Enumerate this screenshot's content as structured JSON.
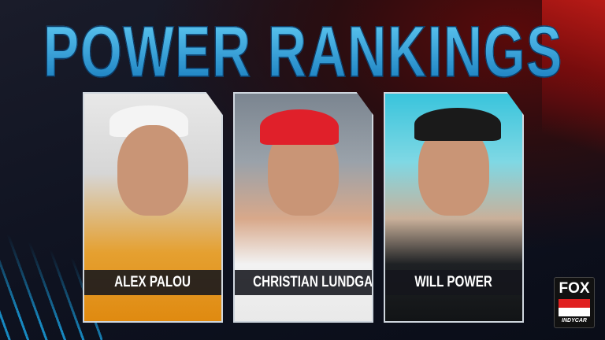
{
  "title": "POWER RANKINGS",
  "drivers": [
    {
      "name": "ALEX PALOU"
    },
    {
      "name": "CHRISTIAN LUNDGAARD"
    },
    {
      "name": "WILL POWER"
    }
  ],
  "logo": {
    "network": "FOX",
    "series": "INDYCAR"
  },
  "colors": {
    "title_blue": "#2a9ad8",
    "accent_red": "#e0201a",
    "card_border": "#cfd6de"
  }
}
